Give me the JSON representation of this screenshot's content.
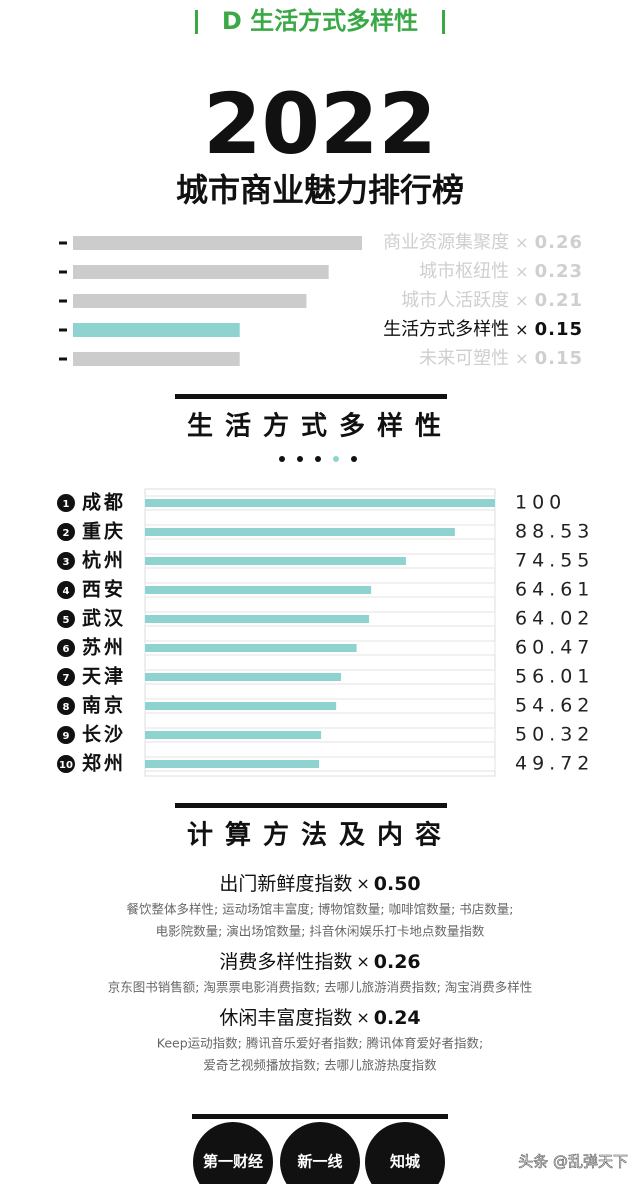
{
  "header": {
    "section": "D 生活方式多样性",
    "year": "2022",
    "title": "城市商业魅力排行榜"
  },
  "multiply": "×",
  "chart_data": [
    {
      "type": "weight-bar",
      "categories": [
        "商业资源集聚度",
        "城市枢纽性",
        "城市人活跃度",
        "生活方式多样性",
        "未来可塑性"
      ],
      "values": [
        0.26,
        0.23,
        0.21,
        0.15,
        0.15
      ],
      "colors": [
        "#cccccc",
        "#cccccc",
        "#cccccc",
        "#8fd3d0",
        "#cccccc"
      ],
      "label_colors": [
        "#cfcfcf",
        "#cfcfcf",
        "#cfcfcf",
        "#111111",
        "#cfcfcf"
      ],
      "xlim": [
        0,
        0.26
      ]
    },
    {
      "type": "rank-bar",
      "title": "生活方式多样性",
      "ranks": [
        1,
        2,
        3,
        4,
        5,
        6,
        7,
        8,
        9,
        10
      ],
      "categories": [
        "成都",
        "重庆",
        "杭州",
        "西安",
        "武汉",
        "苏州",
        "天津",
        "南京",
        "长沙",
        "郑州"
      ],
      "values": [
        100,
        88.53,
        74.55,
        64.61,
        64.02,
        60.47,
        56.01,
        54.62,
        50.32,
        49.72
      ],
      "color": "#8fd3d0",
      "xlim": [
        0,
        100
      ]
    }
  ],
  "method": {
    "title": "计算方法及内容",
    "groups": [
      {
        "title": "出门新鲜度指数",
        "weight": "0.50",
        "details": [
          "餐饮整体多样性; 运动场馆丰富度; 博物馆数量; 咖啡馆数量; 书店数量;",
          "电影院数量; 演出场馆数量; 抖音休闲娱乐打卡地点数量指数"
        ]
      },
      {
        "title": "消费多样性指数",
        "weight": "0.26",
        "details": [
          "京东图书销售额; 淘票票电影消费指数; 去哪儿旅游消费指数; 淘宝消费多样性"
        ]
      },
      {
        "title": "休闲丰富度指数",
        "weight": "0.24",
        "details": [
          "Keep运动指数; 腾讯音乐爱好者指数; 腾讯体育爱好者指数;",
          "爱奇艺视频播放指数; 去哪儿旅游热度指数"
        ]
      }
    ]
  },
  "footer": {
    "logos": [
      "第一财经",
      "新一线",
      "知城"
    ],
    "watermark": "头条 @乱弹天下"
  }
}
